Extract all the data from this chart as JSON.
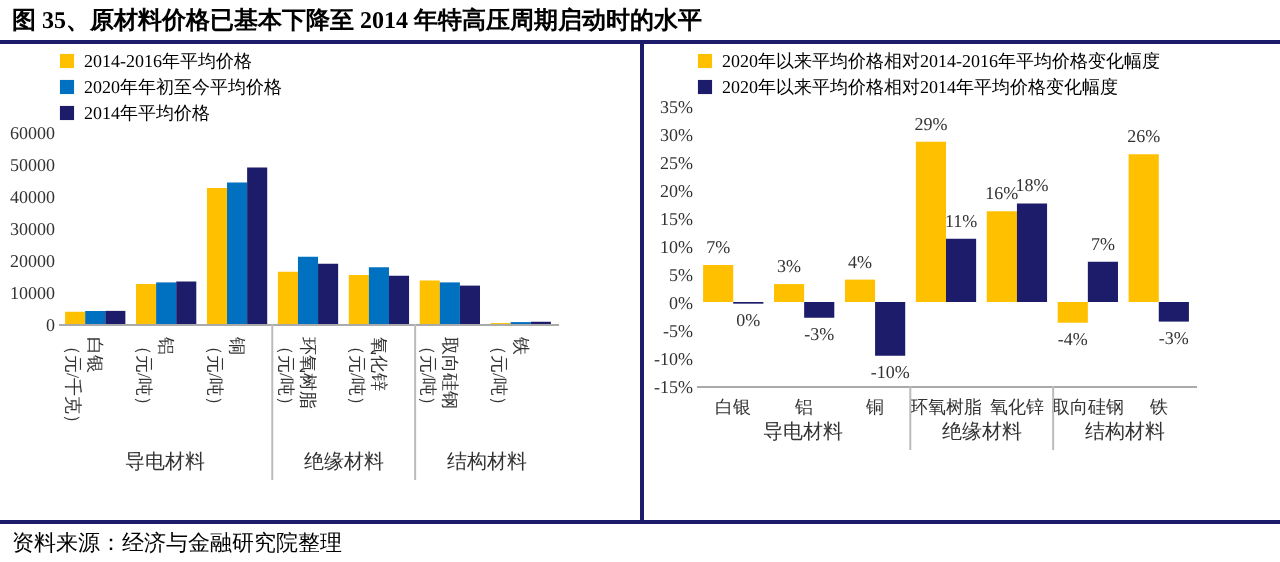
{
  "chart_data": [
    {
      "type": "bar",
      "title": "图 35、原材料价格已基本下降至 2014 年特高压周期启动时的水平",
      "categories": [
        "白银（元/千克）",
        "铝（元/吨）",
        "铜（元/吨）",
        "环氧树脂（元/吨）",
        "氧化锌（元/吨）",
        "取向硅钢（元/吨）",
        "铁（元/吨）"
      ],
      "series": [
        {
          "name": "2014-2016年平均价格",
          "color": "#ffc000",
          "values": [
            3800,
            12500,
            42500,
            16300,
            15300,
            13600,
            300
          ]
        },
        {
          "name": "2020年年初至今平均价格",
          "color": "#0070c0",
          "values": [
            4100,
            13000,
            44200,
            21000,
            17700,
            13000,
            600
          ]
        },
        {
          "name": "2014年平均价格",
          "color": "#1c1c6b",
          "values": [
            4100,
            13300,
            48900,
            18800,
            15100,
            12000,
            700
          ]
        }
      ],
      "ylim": [
        0,
        60000
      ],
      "yticks": [
        0,
        10000,
        20000,
        30000,
        40000,
        50000,
        60000
      ],
      "legend": "top",
      "annotations": [
        "导电材料",
        "绝缘材料",
        "结构材料",
        "资料来源：经济与金融研究院整理"
      ]
    },
    {
      "type": "bar",
      "categories": [
        "白银",
        "铝",
        "铜",
        "环氧树脂",
        "氧化锌",
        "取向硅钢",
        "铁"
      ],
      "series": [
        {
          "name": "2020年以来平均价格相对2014-2016年平均价格变化幅度",
          "color": "#ffc000",
          "values": [
            6.6,
            3.2,
            4.0,
            28.6,
            16.2,
            -3.7,
            26.4
          ],
          "value_labels": [
            "7%",
            "3%",
            "4%",
            "29%",
            "16%",
            "-4%",
            "26%"
          ]
        },
        {
          "name": "2020年以来平均价格相对2014年平均价格变化幅度",
          "color": "#1c1c6b",
          "values": [
            -0.3,
            -2.8,
            -9.6,
            11.3,
            17.6,
            7.2,
            -3.5
          ],
          "value_labels": [
            "0%",
            "-3%",
            "-10%",
            "11%",
            "18%",
            "7%",
            "-3%"
          ]
        }
      ],
      "ylim": [
        -15,
        35
      ],
      "yticks": [
        {
          "value": -15,
          "label": "-15%"
        },
        {
          "value": -10,
          "label": "-10%"
        },
        {
          "value": -5,
          "label": "-5%"
        },
        {
          "value": 0,
          "label": "0%"
        },
        {
          "value": 5,
          "label": "5%"
        },
        {
          "value": 10,
          "label": "10%"
        },
        {
          "value": 15,
          "label": "15%"
        },
        {
          "value": 20,
          "label": "20%"
        },
        {
          "value": 25,
          "label": "25%"
        },
        {
          "value": 30,
          "label": "30%"
        },
        {
          "value": 35,
          "label": "35%"
        }
      ],
      "legend": "top",
      "annotations": [
        "导电材料",
        "绝缘材料",
        "结构材料"
      ]
    }
  ]
}
